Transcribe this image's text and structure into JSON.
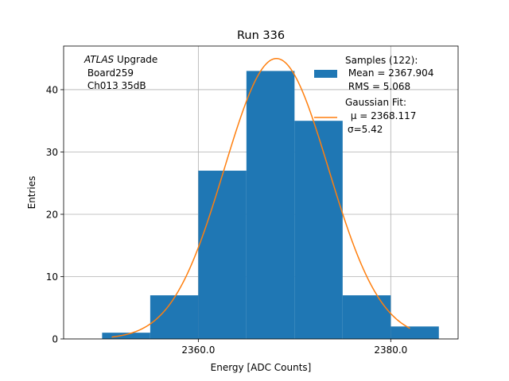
{
  "chart_data": {
    "type": "bar",
    "title": "Run 336",
    "xlabel": "Energy [ADC Counts]",
    "ylabel": "Entries",
    "xlim": [
      2346.0,
      2387.0
    ],
    "ylim": [
      0,
      47
    ],
    "x_ticks": [
      2360.0,
      2380.0
    ],
    "x_tick_labels": [
      "2360.0",
      "2380.0"
    ],
    "y_ticks": [
      0,
      10,
      20,
      30,
      40
    ],
    "y_tick_labels": [
      "0",
      "10",
      "20",
      "30",
      "40"
    ],
    "grid": true,
    "bins": [
      {
        "x0": 2350.0,
        "x1": 2355.0,
        "count": 1
      },
      {
        "x0": 2355.0,
        "x1": 2360.0,
        "count": 7
      },
      {
        "x0": 2360.0,
        "x1": 2365.0,
        "count": 27
      },
      {
        "x0": 2365.0,
        "x1": 2370.0,
        "count": 43
      },
      {
        "x0": 2370.0,
        "x1": 2375.0,
        "count": 35
      },
      {
        "x0": 2375.0,
        "x1": 2380.0,
        "count": 7
      },
      {
        "x0": 2380.0,
        "x1": 2385.0,
        "count": 2
      }
    ],
    "fit": {
      "mu": 2368.117,
      "sigma": 5.42,
      "amplitude": 45.0,
      "x_range": [
        2351.0,
        2382.0
      ]
    },
    "bar_color": "#1f77b4",
    "fit_color": "#ff7f0e",
    "annotation": {
      "italic_part": "ATLAS",
      "rest_line1": " Upgrade",
      "line2": " Board259",
      "line3": " Ch013 35dB"
    },
    "legend": {
      "position": "top-right",
      "samples": {
        "line1": "Samples (122):",
        "line2": " Mean = 2367.904",
        "line3": " RMS = 5.068"
      },
      "fit": {
        "line1": "Gaussian Fit:",
        "line2": " μ = 2368.117",
        "line3": "σ=5.42"
      }
    }
  }
}
